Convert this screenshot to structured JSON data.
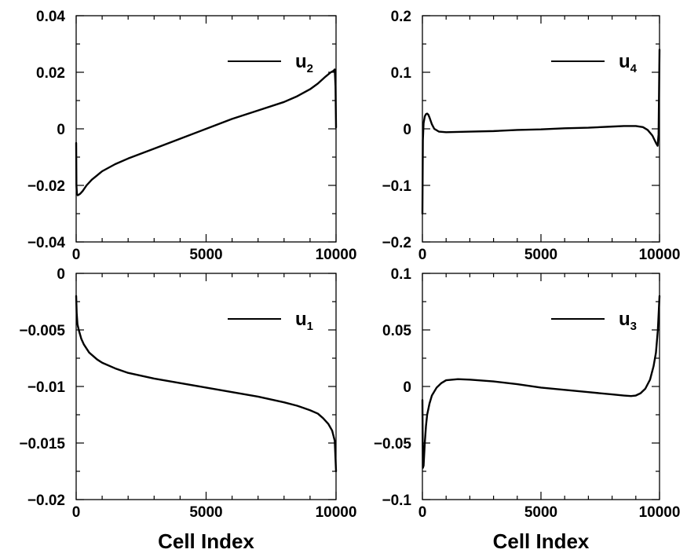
{
  "chart_data": [
    {
      "type": "line",
      "panel": "top-left",
      "xlabel": "",
      "ylabel": "",
      "xlim": [
        0,
        10000
      ],
      "ylim": [
        -0.04,
        0.04
      ],
      "x_ticks": [
        0,
        5000,
        10000
      ],
      "x_tick_labels": [
        "0",
        "5000",
        "10000"
      ],
      "y_ticks": [
        -0.04,
        -0.02,
        0,
        0.02,
        0.04
      ],
      "y_tick_labels": [
        "−0.04",
        "−0.02",
        "0",
        "0.02",
        "0.04"
      ],
      "legend_position": "top-right",
      "series": [
        {
          "name": "u2",
          "name_main": "u",
          "name_sub": "2",
          "color": "#000000",
          "x": [
            0,
            10,
            30,
            60,
            100,
            150,
            250,
            400,
            600,
            800,
            1000,
            1500,
            2000,
            3000,
            4000,
            5000,
            6000,
            7000,
            8000,
            8500,
            9000,
            9300,
            9600,
            9800,
            9900,
            9950,
            9980,
            10000
          ],
          "y": [
            -0.005,
            -0.02,
            -0.023,
            -0.0235,
            -0.0233,
            -0.023,
            -0.022,
            -0.02,
            -0.018,
            -0.0165,
            -0.015,
            -0.0125,
            -0.0105,
            -0.007,
            -0.0035,
            0,
            0.0035,
            0.0065,
            0.0095,
            0.0115,
            0.014,
            0.016,
            0.0185,
            0.02,
            0.0205,
            0.021,
            0.015,
            0.0005
          ]
        }
      ]
    },
    {
      "type": "line",
      "panel": "top-right",
      "xlabel": "",
      "ylabel": "",
      "xlim": [
        0,
        10000
      ],
      "ylim": [
        -0.2,
        0.2
      ],
      "x_ticks": [
        0,
        5000,
        10000
      ],
      "x_tick_labels": [
        "0",
        "5000",
        "10000"
      ],
      "y_ticks": [
        -0.2,
        -0.1,
        0,
        0.1,
        0.2
      ],
      "y_tick_labels": [
        "−0.2",
        "−0.1",
        "0",
        "0.1",
        "0.2"
      ],
      "legend_position": "top-right",
      "series": [
        {
          "name": "u4",
          "name_main": "u",
          "name_sub": "4",
          "color": "#000000",
          "x": [
            0,
            20,
            50,
            100,
            150,
            200,
            250,
            300,
            400,
            500,
            700,
            1000,
            2000,
            3000,
            4000,
            5000,
            6000,
            7000,
            8000,
            8500,
            9000,
            9300,
            9500,
            9700,
            9850,
            9920,
            9960,
            10000
          ],
          "y": [
            -0.15,
            -0.02,
            0.01,
            0.022,
            0.026,
            0.027,
            0.025,
            0.02,
            0.008,
            0,
            -0.005,
            -0.006,
            -0.005,
            -0.004,
            -0.002,
            -0.001,
            0.001,
            0.002,
            0.004,
            0.005,
            0.005,
            0.003,
            -0.002,
            -0.012,
            -0.025,
            -0.03,
            -0.01,
            0.14
          ]
        }
      ]
    },
    {
      "type": "line",
      "panel": "bottom-left",
      "xlabel": "Cell Index",
      "ylabel": "",
      "xlim": [
        0,
        10000
      ],
      "ylim": [
        -0.02,
        0
      ],
      "x_ticks": [
        0,
        5000,
        10000
      ],
      "x_tick_labels": [
        "0",
        "5000",
        "10000"
      ],
      "y_ticks": [
        -0.02,
        -0.015,
        -0.01,
        -0.005,
        0
      ],
      "y_tick_labels": [
        "−0.02",
        "−0.015",
        "−0.01",
        "−0.005",
        "0"
      ],
      "legend_position": "top-right",
      "series": [
        {
          "name": "u1",
          "name_main": "u",
          "name_sub": "1",
          "color": "#000000",
          "x": [
            0,
            20,
            50,
            100,
            200,
            300,
            500,
            800,
            1000,
            1500,
            2000,
            3000,
            4000,
            5000,
            6000,
            7000,
            8000,
            8500,
            9000,
            9300,
            9500,
            9700,
            9850,
            9950,
            10000
          ],
          "y": [
            -0.002,
            -0.0035,
            -0.0045,
            -0.005,
            -0.0058,
            -0.0063,
            -0.007,
            -0.0076,
            -0.0079,
            -0.0084,
            -0.0088,
            -0.0093,
            -0.0097,
            -0.0101,
            -0.0105,
            -0.0109,
            -0.0114,
            -0.0117,
            -0.0121,
            -0.0124,
            -0.0128,
            -0.0133,
            -0.0139,
            -0.0148,
            -0.0175
          ]
        }
      ]
    },
    {
      "type": "line",
      "panel": "bottom-right",
      "xlabel": "Cell Index",
      "ylabel": "",
      "xlim": [
        0,
        10000
      ],
      "ylim": [
        -0.1,
        0.1
      ],
      "x_ticks": [
        0,
        5000,
        10000
      ],
      "x_tick_labels": [
        "0",
        "5000",
        "10000"
      ],
      "y_ticks": [
        -0.1,
        -0.05,
        0,
        0.05,
        0.1
      ],
      "y_tick_labels": [
        "−0.1",
        "−0.05",
        "0",
        "0.05",
        "0.1"
      ],
      "legend_position": "top-right",
      "series": [
        {
          "name": "u3",
          "name_main": "u",
          "name_sub": "3",
          "color": "#000000",
          "x": [
            0,
            20,
            50,
            100,
            150,
            200,
            300,
            400,
            600,
            800,
            1000,
            1500,
            2000,
            3000,
            4000,
            5000,
            6000,
            7000,
            8000,
            8500,
            8800,
            9000,
            9200,
            9400,
            9600,
            9750,
            9850,
            9930,
            10000
          ],
          "y": [
            -0.012,
            -0.072,
            -0.07,
            -0.05,
            -0.035,
            -0.025,
            -0.015,
            -0.008,
            -0.001,
            0.003,
            0.0055,
            0.0065,
            0.006,
            0.0045,
            0.002,
            -0.001,
            -0.003,
            -0.005,
            -0.007,
            -0.008,
            -0.0085,
            -0.008,
            -0.006,
            -0.002,
            0.006,
            0.018,
            0.03,
            0.05,
            0.08
          ]
        }
      ]
    }
  ]
}
